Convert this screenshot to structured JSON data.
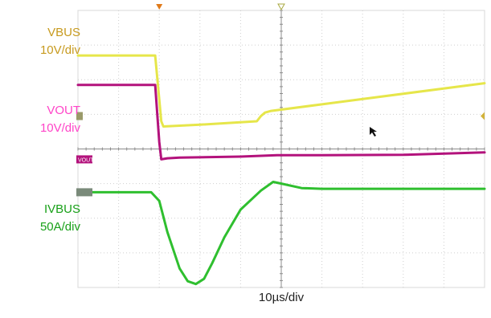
{
  "chart_data": {
    "type": "line",
    "x_unit": "µs",
    "xlim": [
      0,
      100
    ],
    "xlabel": "10µs/div",
    "divisions": {
      "x": 10,
      "y": 8
    },
    "grid": true,
    "series": [
      {
        "name": "VBUS",
        "scale": "10V/div",
        "color": "#e6e64a",
        "label_color": "#c79a1e",
        "x": [
          0,
          19,
          20.5,
          21,
          30,
          44,
          45,
          46,
          47.5,
          100
        ],
        "y_div": [
          6.7,
          6.7,
          4.8,
          4.65,
          4.7,
          4.8,
          4.95,
          5.05,
          5.1,
          5.9
        ]
      },
      {
        "name": "VOUT",
        "scale": "10V/div",
        "color": "#b3127c",
        "label_color": "#ff44c8",
        "x": [
          0,
          19,
          20,
          20.5,
          22,
          25,
          40,
          49,
          60,
          80,
          100
        ],
        "y_div": [
          5.85,
          5.85,
          4.2,
          3.7,
          3.73,
          3.75,
          3.78,
          3.82,
          3.82,
          3.83,
          3.9
        ]
      },
      {
        "name": "IVBUS",
        "scale": "50A/div",
        "color": "#2fbf2f",
        "label_color": "#18a018",
        "x": [
          0,
          18,
          20,
          22,
          25,
          27,
          29,
          31,
          33,
          36,
          40,
          45,
          48,
          50,
          55,
          60,
          70,
          80,
          100
        ],
        "y_div": [
          2.75,
          2.75,
          2.5,
          1.6,
          0.55,
          0.18,
          0.1,
          0.25,
          0.7,
          1.45,
          2.25,
          2.8,
          3.05,
          3.0,
          2.87,
          2.85,
          2.85,
          2.85,
          2.85
        ]
      }
    ],
    "ch_markers": [
      "VOUT"
    ],
    "trigger_markers": [
      "orange-triangle",
      "hollow-triangle"
    ]
  },
  "icons": {
    "cursor": "mouse-pointer-icon"
  }
}
